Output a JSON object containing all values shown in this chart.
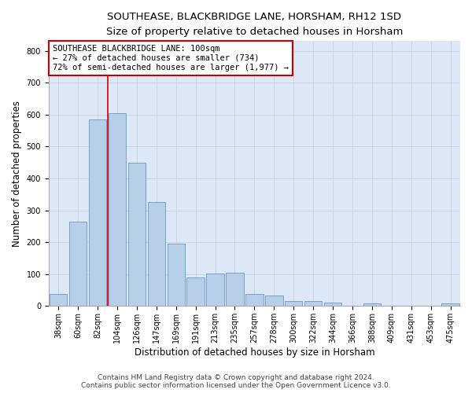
{
  "title1": "SOUTHEASE, BLACKBRIDGE LANE, HORSHAM, RH12 1SD",
  "title2": "Size of property relative to detached houses in Horsham",
  "xlabel": "Distribution of detached houses by size in Horsham",
  "ylabel": "Number of detached properties",
  "categories": [
    "38sqm",
    "60sqm",
    "82sqm",
    "104sqm",
    "126sqm",
    "147sqm",
    "169sqm",
    "191sqm",
    "213sqm",
    "235sqm",
    "257sqm",
    "278sqm",
    "300sqm",
    "322sqm",
    "344sqm",
    "366sqm",
    "388sqm",
    "409sqm",
    "431sqm",
    "453sqm",
    "475sqm"
  ],
  "values": [
    38,
    265,
    585,
    605,
    450,
    325,
    195,
    90,
    102,
    105,
    38,
    33,
    15,
    15,
    10,
    0,
    7,
    0,
    0,
    0,
    7
  ],
  "bar_color": "#b8cfe8",
  "bar_edge_color": "#6699cc",
  "vline_x": 2.5,
  "annotation_line1": "SOUTHEASE BLACKBRIDGE LANE: 100sqm",
  "annotation_line2": "← 27% of detached houses are smaller (734)",
  "annotation_line3": "72% of semi-detached houses are larger (1,977) →",
  "annotation_box_color": "white",
  "annotation_border_color": "#cc0000",
  "vline_color": "#cc0000",
  "ylim": [
    0,
    830
  ],
  "yticks": [
    0,
    100,
    200,
    300,
    400,
    500,
    600,
    700,
    800
  ],
  "grid_color": "#c8d4e8",
  "background_color": "#dce8f5",
  "footer1": "Contains HM Land Registry data © Crown copyright and database right 2024.",
  "footer2": "Contains public sector information licensed under the Open Government Licence v3.0.",
  "title1_fontsize": 9.5,
  "title2_fontsize": 9,
  "xlabel_fontsize": 8.5,
  "ylabel_fontsize": 8.5,
  "tick_fontsize": 7,
  "annotation_fontsize": 7.5,
  "footer_fontsize": 6.5
}
